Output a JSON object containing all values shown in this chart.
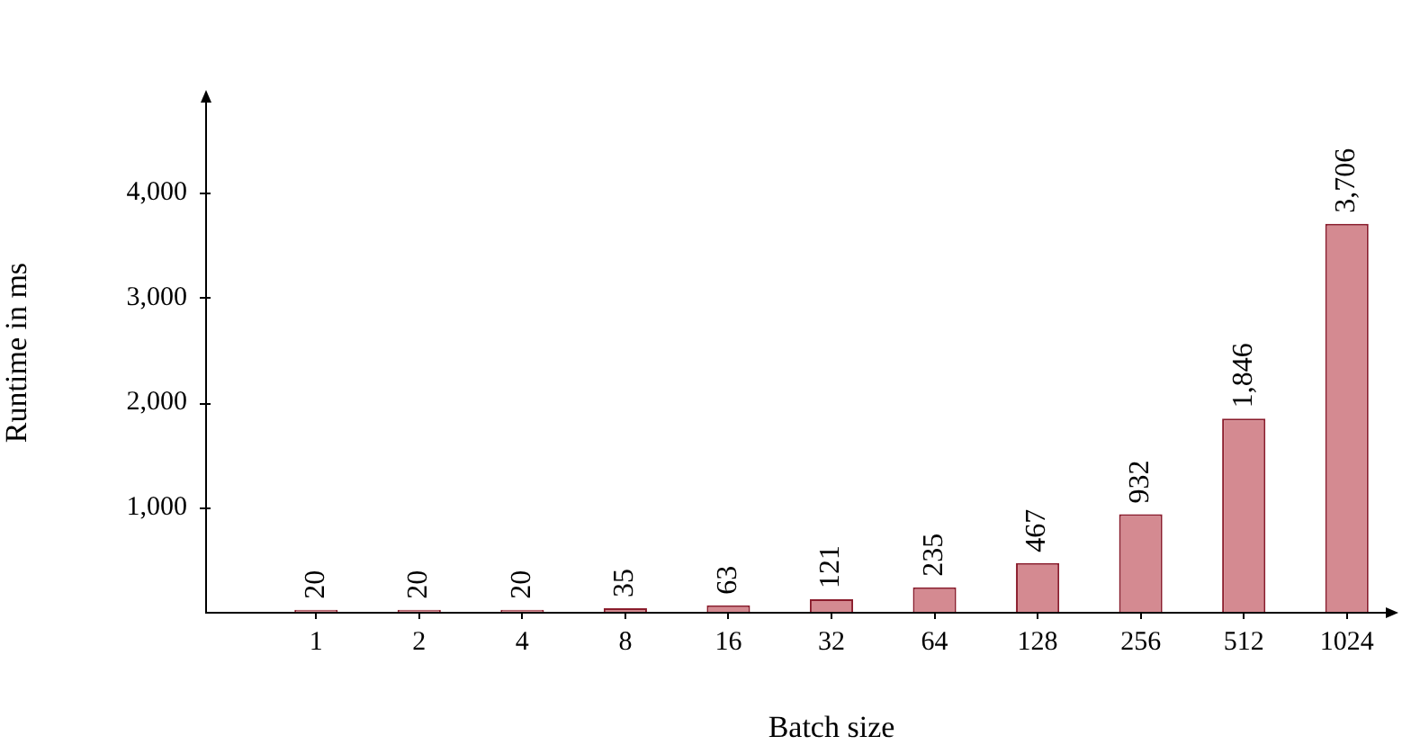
{
  "chart_data": {
    "type": "bar",
    "xlabel": "Batch size",
    "ylabel": "Runtime in ms",
    "categories": [
      "1",
      "2",
      "4",
      "8",
      "16",
      "32",
      "64",
      "128",
      "256",
      "512",
      "1024"
    ],
    "values": [
      20,
      20,
      20,
      35,
      63,
      121,
      235,
      467,
      932,
      1846,
      3706
    ],
    "value_labels": [
      "20",
      "20",
      "20",
      "35",
      "63",
      "121",
      "235",
      "467",
      "932",
      "1,846",
      "3,706"
    ],
    "color": "#d48a91",
    "ylim": [
      0,
      4950
    ],
    "yticks": [
      {
        "value": 1000,
        "label": "1,000"
      },
      {
        "value": 2000,
        "label": "2,000"
      },
      {
        "value": 3000,
        "label": "3,000"
      },
      {
        "value": 4000,
        "label": "4,000"
      }
    ],
    "grid": false,
    "legend": false
  }
}
